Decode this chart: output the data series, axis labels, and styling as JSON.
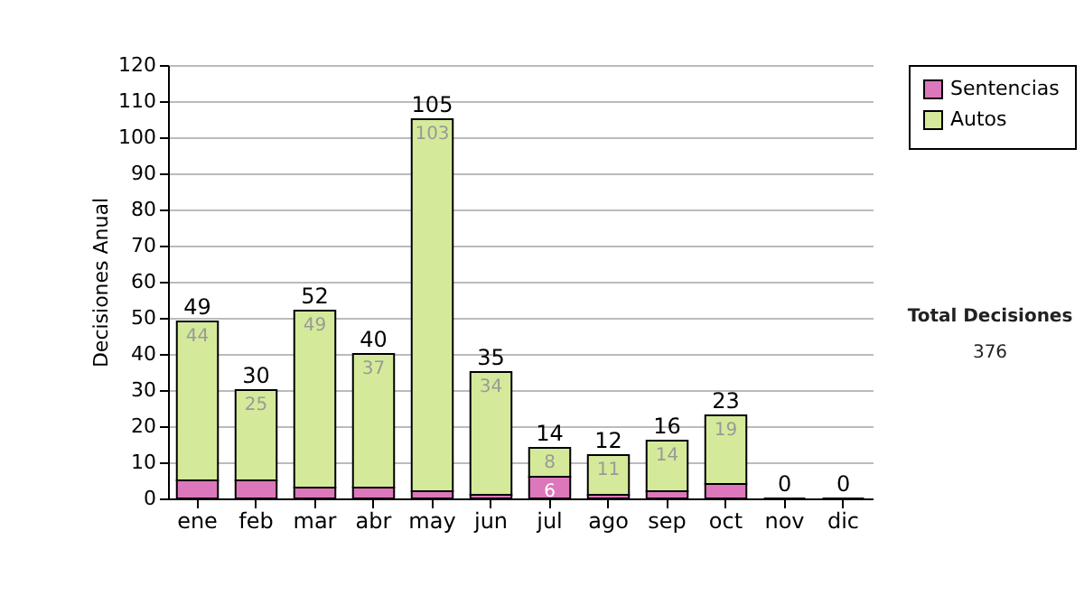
{
  "chart_data": {
    "type": "bar",
    "stacked": true,
    "ylabel": "Decisiones Anual",
    "categories": [
      "ene",
      "feb",
      "mar",
      "abr",
      "may",
      "jun",
      "jul",
      "ago",
      "sep",
      "oct",
      "nov",
      "dic"
    ],
    "series": [
      {
        "name": "Sentencias",
        "color": "#dd77bb",
        "values": [
          5,
          5,
          3,
          3,
          2,
          1,
          6,
          1,
          2,
          4,
          0,
          0
        ],
        "value_labels": [
          null,
          null,
          null,
          null,
          null,
          null,
          "6",
          null,
          null,
          null,
          null,
          null
        ]
      },
      {
        "name": "Autos",
        "color": "#d4ea9a",
        "values": [
          44,
          25,
          49,
          37,
          103,
          34,
          8,
          11,
          14,
          19,
          0,
          0
        ],
        "value_labels": [
          "44",
          "25",
          "49",
          "37",
          "103",
          "34",
          "8",
          "11",
          "14",
          "19",
          null,
          null
        ]
      }
    ],
    "totals": [
      "49",
      "30",
      "52",
      "40",
      "105",
      "35",
      "14",
      "12",
      "16",
      "23",
      "0",
      "0"
    ],
    "ylim": [
      0,
      120
    ],
    "yticks": [
      0,
      10,
      20,
      30,
      40,
      50,
      60,
      70,
      80,
      90,
      100,
      110,
      120
    ],
    "grid": "y",
    "legend": "right",
    "annotations": [
      "Total Decisiones",
      "376"
    ]
  }
}
